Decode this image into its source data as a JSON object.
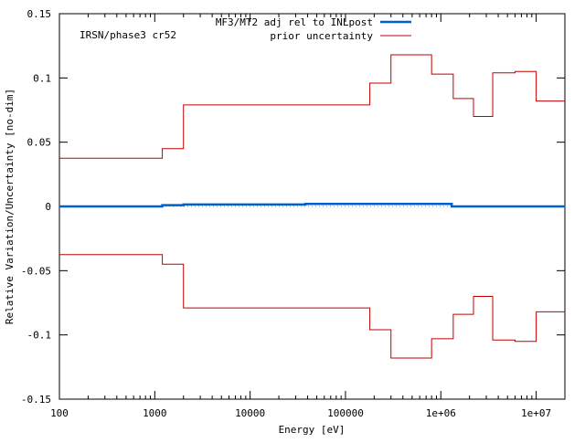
{
  "chart_data": {
    "type": "line",
    "annotation": "IRSN/phase3 cr52",
    "xlabel": "Energy [eV]",
    "ylabel": "Relative Variation/Uncertainty [no-dim]",
    "xscale": "log",
    "xlim": [
      100,
      20000000
    ],
    "ylim": [
      -0.15,
      0.15
    ],
    "x_tick_labels": [
      {
        "value": 100,
        "label": "100"
      },
      {
        "value": 1000,
        "label": "1000"
      },
      {
        "value": 10000,
        "label": "10000"
      },
      {
        "value": 100000,
        "label": "100000"
      },
      {
        "value": 1000000,
        "label": "1e+06"
      },
      {
        "value": 10000000,
        "label": "1e+07"
      }
    ],
    "y_tick_labels": [
      {
        "value": 0.15,
        "label": "0.15"
      },
      {
        "value": 0.1,
        "label": "0.1"
      },
      {
        "value": 0.05,
        "label": "0.05"
      },
      {
        "value": 0,
        "label": "0"
      },
      {
        "value": -0.05,
        "label": "-0.05"
      },
      {
        "value": -0.1,
        "label": "-0.1"
      },
      {
        "value": -0.15,
        "label": "-0.15"
      }
    ],
    "grid": false,
    "legend_position": "top-right",
    "series": [
      {
        "name": "MF3/MT2 adj rel to INLpost",
        "color": "#0060d0",
        "step": true,
        "bounds": [
          100,
          1200,
          2000,
          38000,
          1300000,
          20000000
        ],
        "values": [
          0,
          0.001,
          0.0015,
          0.002,
          0
        ]
      },
      {
        "name": "prior uncertainty",
        "color": "#c00000",
        "step": true,
        "mirrored": true,
        "bounds": [
          100,
          1200,
          2000,
          180000,
          300000,
          800000,
          1350000,
          2200000,
          3500000,
          6000000,
          10000000,
          20000000
        ],
        "values": [
          0.0375,
          0.045,
          0.079,
          0.096,
          0.118,
          0.103,
          0.084,
          0.07,
          0.104,
          0.105,
          0.082
        ]
      }
    ]
  }
}
